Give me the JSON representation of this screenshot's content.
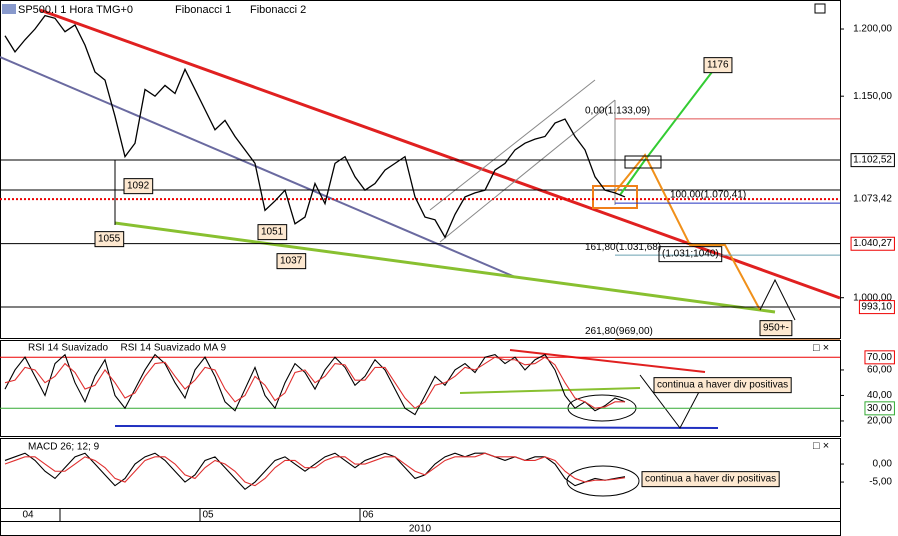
{
  "header": {
    "symbol": "SP500.I 1 Hora TMG+0",
    "tools": [
      "Fibonacci 1",
      "Fibonacci 2"
    ]
  },
  "chart_data": [
    {
      "type": "line",
      "color": "#000",
      "values": [
        1195,
        1183,
        1192,
        1200,
        1210,
        1208,
        1198,
        1203,
        1188,
        1168,
        1162,
        1135,
        1105,
        1115,
        1155,
        1150,
        1158,
        1152,
        1170,
        1155,
        1140,
        1125,
        1132,
        1120,
        1110,
        1100,
        1065,
        1072,
        1080,
        1055,
        1060,
        1085,
        1070,
        1100,
        1105,
        1090,
        1080,
        1085,
        1095,
        1100,
        1105,
        1075,
        1060,
        1058,
        1045,
        1062,
        1075,
        1078,
        1080,
        1095,
        1100,
        1110,
        1115,
        1118,
        1120,
        1130,
        1133,
        1120,
        1110,
        1090,
        1080,
        1078,
        1075
      ],
      "ylim": [
        970,
        1221.6
      ],
      "yticks": [
        {
          "value": 1000,
          "label": "1.000,00"
        },
        {
          "value": 1150,
          "label": "1.150,00"
        },
        {
          "value": 1200,
          "label": "1.200,00"
        }
      ],
      "levels": [
        {
          "value": 1102.52,
          "label": "1.102,52",
          "color": "#000"
        },
        {
          "value": 1073.42,
          "label": "1.073,42",
          "color": "#fff"
        },
        {
          "value": 1040.27,
          "label": "1.040,27",
          "color": "#e00"
        },
        {
          "value": 993.1,
          "label": "993,10",
          "color": "#e00"
        }
      ],
      "fibonacci": [
        {
          "value": 1133.09,
          "label": "0,00(1.133,09)",
          "color": "#e05050"
        },
        {
          "value": 1070.41,
          "label": "100,00(1.070,41)",
          "color": "#2030c0"
        },
        {
          "value": 1031.68,
          "label": "161,80(1.031,68)",
          "color": "#6aa0b0"
        },
        {
          "value": 969,
          "label": "261,80(969,00)",
          "color": "#d08040"
        }
      ],
      "annotations": [
        "1092",
        "1055",
        "1051",
        "1037",
        "1176",
        "950+-",
        "(1.031;1040)"
      ]
    },
    {
      "type": "line",
      "series": [
        {
          "name": "RSI 14 Suavizado",
          "color": "#000",
          "values": [
            45,
            60,
            70,
            55,
            40,
            65,
            72,
            50,
            35,
            55,
            68,
            40,
            30,
            45,
            60,
            72,
            65,
            50,
            38,
            60,
            70,
            55,
            35,
            28,
            45,
            62,
            40,
            30,
            50,
            65,
            58,
            45,
            60,
            70,
            62,
            48,
            55,
            68,
            60,
            45,
            30,
            25,
            40,
            55,
            48,
            60,
            65,
            58,
            70,
            72,
            65,
            70,
            60,
            68,
            72,
            60,
            40,
            30,
            35,
            28,
            32,
            38,
            35
          ]
        },
        {
          "name": "RSI 14 Suavizado MA 9",
          "color": "#e03030",
          "values": [
            50,
            52,
            62,
            60,
            50,
            55,
            65,
            58,
            45,
            48,
            60,
            50,
            38,
            42,
            55,
            65,
            66,
            55,
            45,
            52,
            62,
            60,
            45,
            35,
            40,
            55,
            48,
            36,
            42,
            58,
            60,
            50,
            55,
            65,
            64,
            52,
            52,
            62,
            62,
            50,
            38,
            30,
            35,
            48,
            50,
            55,
            62,
            60,
            65,
            70,
            68,
            68,
            64,
            65,
            70,
            64,
            50,
            38,
            35,
            30,
            31,
            35,
            35
          ]
        }
      ],
      "ylim": [
        8.2,
        82.7
      ],
      "yticks": [
        {
          "value": 20,
          "label": "20,00"
        },
        {
          "value": 40,
          "label": "40,00"
        },
        {
          "value": 60,
          "label": "60,00"
        }
      ],
      "levels": [
        {
          "value": 70,
          "label": "70,00",
          "color": "#e00"
        },
        {
          "value": 30,
          "label": "30,00",
          "color": "#3a3"
        }
      ],
      "annotation": "continua a haver div positivas"
    },
    {
      "type": "line",
      "series": [
        {
          "name": "MACD 26; 12; 9",
          "color": "#000",
          "values": [
            1,
            2,
            3,
            1,
            -2,
            -4,
            -1,
            2,
            3,
            0,
            -3,
            -6,
            -4,
            0,
            2,
            3,
            1,
            -2,
            -5,
            -3,
            1,
            2,
            -1,
            -4,
            -7,
            -5,
            -2,
            1,
            2,
            0,
            -2,
            0,
            2,
            3,
            1,
            -1,
            1,
            2,
            3,
            2,
            -1,
            -4,
            -3,
            0,
            2,
            3,
            2,
            3,
            3,
            2,
            1,
            2,
            1,
            2,
            2,
            0,
            -4,
            -6,
            -5,
            -4,
            -4.5,
            -4,
            -3.5
          ]
        },
        {
          "color": "#e03030",
          "values": [
            0,
            1,
            2,
            2,
            0,
            -2,
            -2,
            0,
            2,
            1,
            -1,
            -4,
            -5,
            -2,
            1,
            2,
            2,
            0,
            -3,
            -4,
            -1,
            1,
            0,
            -2,
            -5,
            -6,
            -4,
            -1,
            1,
            1,
            -1,
            -1,
            1,
            2,
            2,
            0,
            0,
            1,
            2,
            2,
            0,
            -2,
            -3,
            -1,
            1,
            2,
            2,
            2,
            3,
            2,
            2,
            2,
            1,
            1,
            2,
            1,
            -2,
            -4,
            -5,
            -4.5,
            -4.5,
            -4.2,
            -3.8
          ]
        }
      ],
      "ylim": [
        -12.2,
        6.67
      ],
      "yticks": [
        {
          "value": -5,
          "label": "-5,00"
        },
        {
          "value": 0,
          "label": "0,00"
        }
      ],
      "annotation": "continua a haver div positivas"
    }
  ],
  "x_axis": {
    "months": [
      "04",
      "05",
      "06"
    ],
    "year": "2010"
  }
}
